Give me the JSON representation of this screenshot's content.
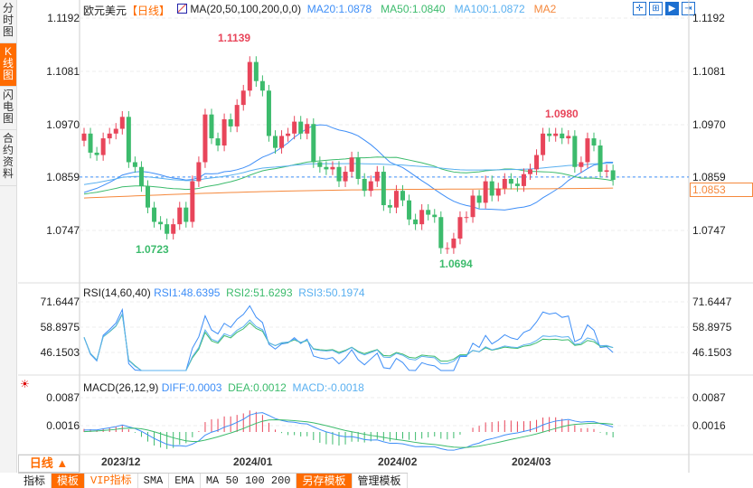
{
  "sidebar": {
    "items": [
      {
        "label": "分时图"
      },
      {
        "label": "K线图"
      },
      {
        "label": "闪电图"
      },
      {
        "label": "合约资料"
      }
    ]
  },
  "header": {
    "symbol": "欧元美元",
    "period": "【日线】",
    "ma_label": "MA(20,50,100,200,0,0)",
    "ma20": "MA20:1.0878",
    "ma50": "MA50:1.0840",
    "ma100": "MA100:1.0872",
    "ma200": "MA2"
  },
  "toolbar_icons": [
    "crosshair-icon",
    "zoom-range-icon",
    "zoom-in-icon",
    "scroll-right-icon"
  ],
  "price_axis": {
    "ticks": [
      "1.1192",
      "1.1081",
      "1.0970",
      "1.0859",
      "1.0747"
    ],
    "current": "1.0853"
  },
  "annotations": {
    "high": "1.1139",
    "low1": "1.0723",
    "low2": "1.0694",
    "high2": "1.0980"
  },
  "rsi": {
    "label": "RSI(14,60,40)",
    "rsi1": "RSI1:48.6395",
    "rsi2": "RSI2:51.6293",
    "rsi3": "RSI3:50.1974",
    "ticks": [
      "71.6447",
      "58.8975",
      "46.1503"
    ]
  },
  "macd": {
    "label": "MACD(26,12,9)",
    "diff": "DIFF:0.0003",
    "dea": "DEA:0.0012",
    "macd": "MACD:-0.0018",
    "ticks": [
      "0.0087",
      "0.0016"
    ]
  },
  "dates": [
    "2023/12",
    "2024/01",
    "2024/02",
    "2024/03"
  ],
  "period_button": "日线 ▲",
  "bottom_tabs": [
    "指标",
    "模板",
    "VIP指标",
    "SMA",
    "EMA",
    "MA 50 100 200",
    "另存模板",
    "管理模板"
  ],
  "colors": {
    "up": "#e8455a",
    "down": "#3cbb6c",
    "ma20": "#3e8ef7",
    "ma50": "#3cbb6c",
    "ma100": "#5ab0f0",
    "ma200": "#f5883c",
    "accent": "#ff6c00"
  },
  "chart_data": {
    "type": "candlestick",
    "start_close": 1.0935,
    "closes": [
      1.095,
      1.091,
      1.0905,
      1.094,
      1.095,
      1.096,
      1.0985,
      1.089,
      1.088,
      1.084,
      1.0795,
      1.0765,
      1.076,
      1.074,
      1.076,
      1.0795,
      1.0765,
      1.085,
      1.089,
      1.099,
      1.094,
      1.0925,
      1.098,
      1.0965,
      1.101,
      1.104,
      1.11,
      1.106,
      1.104,
      1.0945,
      1.092,
      1.0945,
      1.095,
      1.0975,
      1.095,
      1.097,
      1.089,
      1.088,
      1.0875,
      1.088,
      1.085,
      1.087,
      1.09,
      1.0855,
      1.083,
      1.085,
      1.087,
      1.08,
      1.0795,
      1.083,
      1.081,
      1.077,
      1.076,
      1.079,
      1.078,
      1.0775,
      1.071,
      1.071,
      1.073,
      1.0775,
      1.0775,
      1.082,
      1.0805,
      1.085,
      1.082,
      1.0835,
      1.0855,
      1.0845,
      1.084,
      1.0865,
      1.0875,
      1.0905,
      1.095,
      1.0945,
      1.095,
      1.094,
      1.0945,
      1.088,
      1.089,
      1.094,
      1.0925,
      1.087,
      1.0873,
      1.0853
    ],
    "ylim": [
      1.0636,
      1.1192
    ]
  }
}
